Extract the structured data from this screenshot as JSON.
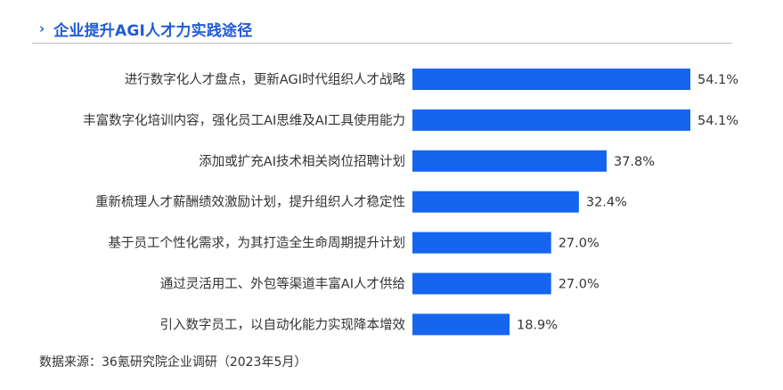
{
  "header": {
    "title": "企业提升AGI人才力实践途径",
    "chevron_icon": "chevron-right-icon"
  },
  "source": {
    "text": "数据来源：36氪研究院企业调研（2023年5月）"
  },
  "colors": {
    "accent": "#1f5bd6",
    "bar": "#1565f0",
    "rule": "#bfbfbf",
    "text": "#333333"
  },
  "chart_data": {
    "type": "bar",
    "orientation": "horizontal",
    "title": "企业提升AGI人才力实践途径",
    "xlabel": "",
    "ylabel": "",
    "grid": false,
    "legend": "none",
    "xlim": [
      0,
      60
    ],
    "categories": [
      "进行数字化人才盘点，更新AGI时代组织人才战略",
      "丰富数字化培训内容，强化员工AI思维及AI工具使用能力",
      "添加或扩充AI技术相关岗位招聘计划",
      "重新梳理人才薪酬绩效激励计划，提升组织人才稳定性",
      "基于员工个性化需求，为其打造全生命周期提升计划",
      "通过灵活用工、外包等渠道丰富AI人才供给",
      "引入数字员工，以自动化能力实现降本增效"
    ],
    "values": [
      54.1,
      54.1,
      37.8,
      32.4,
      27.0,
      27.0,
      18.9
    ],
    "value_labels": [
      "54.1%",
      "54.1%",
      "37.8%",
      "32.4%",
      "27.0%",
      "27.0%",
      "18.9%"
    ]
  }
}
